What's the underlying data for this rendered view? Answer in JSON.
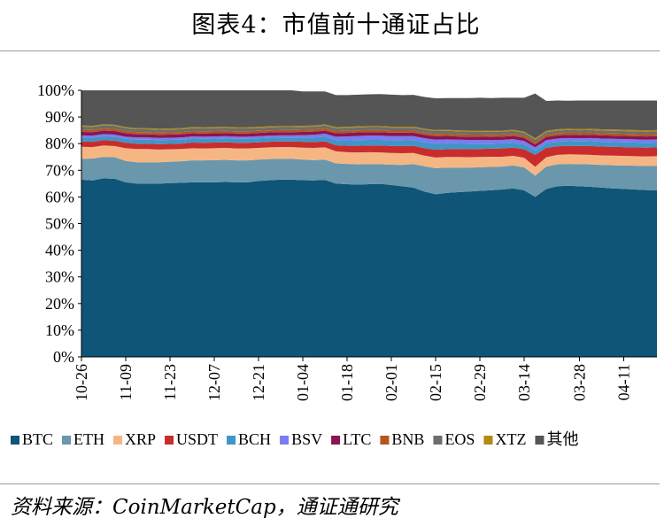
{
  "title": "图表4：市值前十通证占比",
  "source": "资料来源：CoinMarketCap，通证通研究",
  "chart_data": {
    "type": "area",
    "stacked": true,
    "percent": true,
    "ylim": [
      0,
      100
    ],
    "yticks": [
      "0%",
      "10%",
      "20%",
      "30%",
      "40%",
      "50%",
      "60%",
      "70%",
      "80%",
      "90%",
      "100%"
    ],
    "xticks": [
      "10-26",
      "11-09",
      "11-23",
      "12-07",
      "12-21",
      "01-04",
      "01-18",
      "02-01",
      "02-15",
      "02-29",
      "03-14",
      "03-28",
      "04-11"
    ],
    "legend_position": "bottom",
    "x": [
      "10-26",
      "10-29",
      "11-02",
      "11-05",
      "11-09",
      "11-12",
      "11-16",
      "11-19",
      "11-23",
      "11-26",
      "11-30",
      "12-03",
      "12-07",
      "12-10",
      "12-14",
      "12-17",
      "12-21",
      "12-24",
      "12-28",
      "12-31",
      "01-04",
      "01-07",
      "01-11",
      "01-14",
      "01-18",
      "01-21",
      "01-25",
      "01-28",
      "02-01",
      "02-04",
      "02-08",
      "02-11",
      "02-15",
      "02-18",
      "02-22",
      "02-25",
      "02-29",
      "03-03",
      "03-07",
      "03-10",
      "03-14",
      "03-15",
      "03-17",
      "03-21",
      "03-24",
      "03-28",
      "03-31",
      "04-04",
      "04-07",
      "04-11",
      "04-14",
      "04-18",
      "04-21"
    ],
    "series": [
      {
        "name": "BTC",
        "color": "#0e5577",
        "values": [
          66.5,
          66.2,
          67.0,
          66.8,
          65.5,
          65.0,
          65.0,
          65.0,
          65.2,
          65.3,
          65.5,
          65.5,
          65.5,
          65.6,
          65.5,
          65.5,
          66.0,
          66.3,
          66.5,
          66.5,
          66.3,
          66.2,
          66.4,
          65.0,
          64.8,
          64.6,
          64.8,
          64.9,
          64.5,
          64.0,
          63.5,
          62.0,
          61.0,
          61.5,
          61.8,
          62.0,
          62.3,
          62.5,
          62.8,
          63.2,
          62.5,
          60.0,
          63.0,
          64.0,
          64.2,
          64.0,
          63.8,
          63.5,
          63.2,
          63.0,
          62.8,
          62.6,
          62.5
        ]
      },
      {
        "name": "ETH",
        "color": "#6a97ab",
        "values": [
          7.8,
          8.2,
          8.0,
          8.1,
          8.0,
          8.0,
          8.0,
          8.0,
          8.0,
          8.1,
          8.2,
          8.2,
          8.3,
          8.3,
          8.2,
          8.2,
          8.0,
          7.9,
          7.8,
          7.8,
          7.7,
          7.6,
          7.6,
          7.6,
          7.6,
          7.6,
          7.5,
          7.4,
          7.6,
          8.0,
          8.8,
          9.5,
          9.8,
          9.5,
          9.2,
          9.0,
          8.8,
          8.8,
          8.6,
          8.6,
          8.6,
          8.0,
          8.4,
          8.2,
          8.2,
          8.3,
          8.4,
          8.5,
          8.7,
          8.8,
          8.9,
          9.0,
          9.2
        ]
      },
      {
        "name": "XRP",
        "color": "#f5b684",
        "values": [
          4.5,
          4.3,
          4.3,
          4.2,
          4.8,
          5.0,
          5.0,
          4.8,
          4.7,
          4.6,
          4.6,
          4.5,
          4.5,
          4.5,
          4.5,
          4.5,
          4.4,
          4.4,
          4.4,
          4.4,
          4.5,
          4.6,
          4.6,
          4.5,
          4.4,
          4.5,
          4.5,
          4.4,
          4.4,
          4.4,
          4.2,
          4.0,
          4.0,
          4.0,
          4.0,
          3.9,
          3.9,
          3.8,
          3.7,
          3.6,
          3.6,
          3.3,
          3.5,
          3.6,
          3.6,
          3.6,
          3.6,
          3.6,
          3.6,
          3.6,
          3.6,
          3.6,
          3.6
        ]
      },
      {
        "name": "USDT",
        "color": "#c92c2c",
        "values": [
          2.0,
          2.0,
          2.0,
          2.0,
          2.0,
          2.0,
          2.0,
          2.0,
          2.0,
          2.0,
          2.1,
          2.1,
          2.1,
          2.1,
          2.1,
          2.1,
          2.1,
          2.1,
          2.1,
          2.1,
          2.2,
          2.2,
          2.2,
          2.3,
          2.4,
          2.5,
          2.5,
          2.6,
          2.6,
          2.7,
          2.7,
          2.8,
          2.9,
          2.9,
          3.0,
          3.0,
          3.0,
          3.0,
          3.1,
          3.1,
          3.2,
          4.5,
          3.5,
          3.2,
          3.2,
          3.2,
          3.3,
          3.3,
          3.3,
          3.3,
          3.3,
          3.3,
          3.3
        ]
      },
      {
        "name": "BCH",
        "color": "#3f95c6",
        "values": [
          1.5,
          1.5,
          1.5,
          1.5,
          1.5,
          1.5,
          1.5,
          1.5,
          1.5,
          1.5,
          1.5,
          1.5,
          1.5,
          1.5,
          1.5,
          1.5,
          1.5,
          1.5,
          1.5,
          1.5,
          1.6,
          1.7,
          1.8,
          1.9,
          2.0,
          2.1,
          2.1,
          2.1,
          2.1,
          2.1,
          2.1,
          2.2,
          2.3,
          2.2,
          2.1,
          2.1,
          2.0,
          1.9,
          1.9,
          1.9,
          1.8,
          1.6,
          1.7,
          1.7,
          1.7,
          1.7,
          1.8,
          1.8,
          1.8,
          1.8,
          1.8,
          1.8,
          1.8
        ]
      },
      {
        "name": "BSV",
        "color": "#7b7bf2",
        "values": [
          0.8,
          0.8,
          0.8,
          0.8,
          0.8,
          0.8,
          0.8,
          0.8,
          0.8,
          0.8,
          0.8,
          0.8,
          0.8,
          0.8,
          0.8,
          0.8,
          0.8,
          0.8,
          0.8,
          0.8,
          0.9,
          1.0,
          1.1,
          1.3,
          1.5,
          1.6,
          1.6,
          1.6,
          1.6,
          1.6,
          1.5,
          1.5,
          1.5,
          1.5,
          1.4,
          1.4,
          1.4,
          1.3,
          1.3,
          1.3,
          1.3,
          1.2,
          1.2,
          1.2,
          1.2,
          1.2,
          1.2,
          1.2,
          1.2,
          1.2,
          1.2,
          1.2,
          1.2
        ]
      },
      {
        "name": "LTC",
        "color": "#8a1550",
        "values": [
          1.3,
          1.3,
          1.3,
          1.3,
          1.3,
          1.2,
          1.2,
          1.2,
          1.2,
          1.2,
          1.2,
          1.2,
          1.2,
          1.2,
          1.2,
          1.2,
          1.2,
          1.2,
          1.2,
          1.2,
          1.2,
          1.2,
          1.2,
          1.3,
          1.3,
          1.3,
          1.3,
          1.3,
          1.3,
          1.3,
          1.3,
          1.3,
          1.3,
          1.3,
          1.2,
          1.2,
          1.2,
          1.2,
          1.2,
          1.2,
          1.2,
          1.1,
          1.2,
          1.2,
          1.2,
          1.2,
          1.2,
          1.2,
          1.2,
          1.2,
          1.2,
          1.2,
          1.2
        ]
      },
      {
        "name": "BNB",
        "color": "#b5561b",
        "values": [
          0.8,
          0.8,
          0.8,
          0.8,
          0.8,
          0.8,
          0.8,
          0.8,
          0.8,
          0.8,
          0.8,
          0.8,
          0.8,
          0.8,
          0.8,
          0.8,
          0.8,
          0.8,
          0.8,
          0.8,
          0.8,
          0.8,
          0.8,
          0.8,
          0.8,
          0.8,
          0.8,
          0.8,
          0.8,
          0.8,
          0.8,
          0.8,
          0.8,
          0.8,
          0.8,
          0.8,
          0.8,
          0.8,
          0.8,
          0.8,
          0.8,
          0.8,
          0.8,
          0.8,
          0.8,
          0.8,
          0.8,
          0.8,
          0.8,
          0.8,
          0.8,
          0.8,
          0.8
        ]
      },
      {
        "name": "EOS",
        "color": "#6d6d6d",
        "values": [
          1.2,
          1.2,
          1.2,
          1.2,
          1.1,
          1.1,
          1.1,
          1.1,
          1.1,
          1.1,
          1.1,
          1.1,
          1.1,
          1.1,
          1.1,
          1.1,
          1.1,
          1.1,
          1.1,
          1.1,
          1.1,
          1.1,
          1.1,
          1.1,
          1.1,
          1.1,
          1.1,
          1.1,
          1.1,
          1.1,
          1.1,
          1.1,
          1.1,
          1.1,
          1.1,
          1.1,
          1.1,
          1.1,
          1.1,
          1.1,
          1.1,
          1.0,
          1.0,
          1.0,
          1.0,
          1.0,
          1.0,
          1.0,
          1.0,
          1.0,
          1.0,
          1.0,
          1.0
        ]
      },
      {
        "name": "XTZ",
        "color": "#b08a14",
        "values": [
          0.4,
          0.4,
          0.4,
          0.4,
          0.4,
          0.4,
          0.4,
          0.4,
          0.4,
          0.4,
          0.4,
          0.4,
          0.4,
          0.4,
          0.4,
          0.4,
          0.4,
          0.4,
          0.4,
          0.4,
          0.4,
          0.4,
          0.4,
          0.4,
          0.4,
          0.4,
          0.4,
          0.4,
          0.4,
          0.4,
          0.4,
          0.4,
          0.4,
          0.4,
          0.4,
          0.4,
          0.4,
          0.4,
          0.4,
          0.4,
          0.4,
          0.5,
          0.5,
          0.5,
          0.5,
          0.5,
          0.5,
          0.5,
          0.5,
          0.5,
          0.5,
          0.5,
          0.5
        ]
      },
      {
        "name": "其他",
        "color": "#555555",
        "values": [
          13.2,
          13.3,
          12.7,
          12.9,
          13.8,
          14.2,
          14.2,
          14.4,
          14.3,
          14.2,
          13.8,
          13.9,
          13.8,
          13.7,
          13.9,
          13.9,
          13.7,
          13.5,
          13.4,
          13.4,
          12.9,
          12.8,
          12.4,
          12.0,
          11.9,
          11.9,
          11.9,
          12.0,
          12.0,
          11.8,
          11.9,
          11.9,
          11.9,
          11.9,
          12.1,
          12.2,
          12.3,
          12.3,
          12.3,
          12.0,
          12.7,
          16.8,
          11.2,
          10.8,
          10.5,
          10.7,
          10.6,
          10.8,
          10.9,
          11.0,
          11.1,
          11.2,
          11.1
        ]
      }
    ]
  }
}
